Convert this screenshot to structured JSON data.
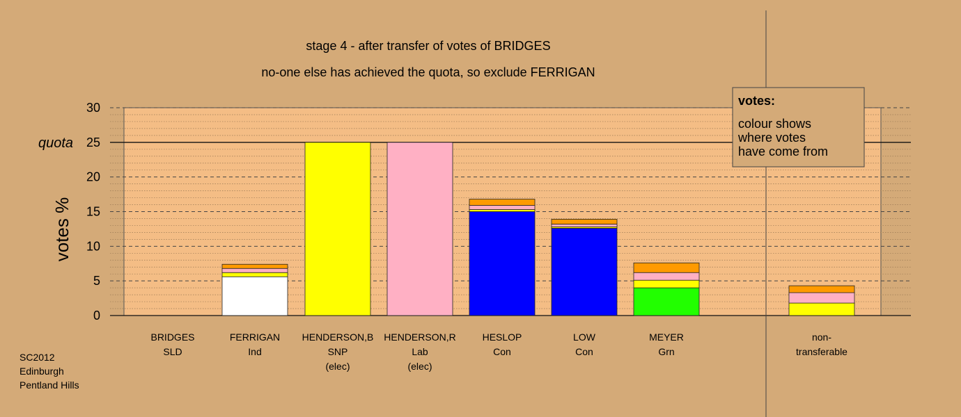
{
  "chart_data": {
    "type": "bar",
    "stacked": true,
    "title": "stage 4 - after transfer of votes of BRIDGES",
    "subtitle": "no-one else has achieved the quota, so exclude FERRIGAN",
    "ylabel": "votes %",
    "ylim": [
      0,
      30
    ],
    "yticks": [
      0,
      5,
      10,
      15,
      20,
      25,
      30
    ],
    "quota": 25,
    "quota_label": "quota",
    "grid": true,
    "legend_position": "top-right",
    "legend_title": "votes:",
    "legend_lines": [
      "colour shows",
      "where votes",
      "have come from"
    ],
    "footnote": [
      "SC2012",
      "Edinburgh",
      "Pentland Hills"
    ],
    "colors": {
      "background": "#d4aa78",
      "plot": "#f4bd85",
      "SLD": "#ff9a00",
      "Lab": "#ffb0c4",
      "SNP": "#ffff00",
      "Con": "#0000ff",
      "Grn": "#22ff00",
      "Ind": "#ffffff"
    },
    "categories": [
      {
        "lines": [
          "BRIDGES",
          "SLD"
        ],
        "segments": []
      },
      {
        "lines": [
          "FERRIGAN",
          "Ind"
        ],
        "segments": [
          {
            "from": "Ind",
            "value": 5.6
          },
          {
            "from": "SNP",
            "value": 0.6
          },
          {
            "from": "Lab",
            "value": 0.6
          },
          {
            "from": "SLD",
            "value": 0.6
          }
        ]
      },
      {
        "lines": [
          "HENDERSON,B",
          "SNP",
          "(elec)"
        ],
        "segments": [
          {
            "from": "SNP",
            "value": 25
          }
        ]
      },
      {
        "lines": [
          "HENDERSON,R",
          "Lab",
          "(elec)"
        ],
        "segments": [
          {
            "from": "Lab",
            "value": 25
          }
        ]
      },
      {
        "lines": [
          "HESLOP",
          "Con"
        ],
        "segments": [
          {
            "from": "Con",
            "value": 15
          },
          {
            "from": "SNP",
            "value": 0.3
          },
          {
            "from": "Lab",
            "value": 0.6
          },
          {
            "from": "SLD",
            "value": 0.9
          }
        ]
      },
      {
        "lines": [
          "LOW",
          "Con"
        ],
        "segments": [
          {
            "from": "Con",
            "value": 12.6
          },
          {
            "from": "SNP",
            "value": 0.2
          },
          {
            "from": "Lab",
            "value": 0.4
          },
          {
            "from": "SLD",
            "value": 0.7
          }
        ]
      },
      {
        "lines": [
          "MEYER",
          "Grn"
        ],
        "segments": [
          {
            "from": "Grn",
            "value": 4
          },
          {
            "from": "SNP",
            "value": 1.1
          },
          {
            "from": "Lab",
            "value": 1.1
          },
          {
            "from": "SLD",
            "value": 1.4
          }
        ]
      },
      {
        "lines": [
          "non-",
          "transferable"
        ],
        "segments": [
          {
            "from": "SNP",
            "value": 1.8
          },
          {
            "from": "Lab",
            "value": 1.5
          },
          {
            "from": "SLD",
            "value": 1.0
          }
        ]
      }
    ]
  }
}
